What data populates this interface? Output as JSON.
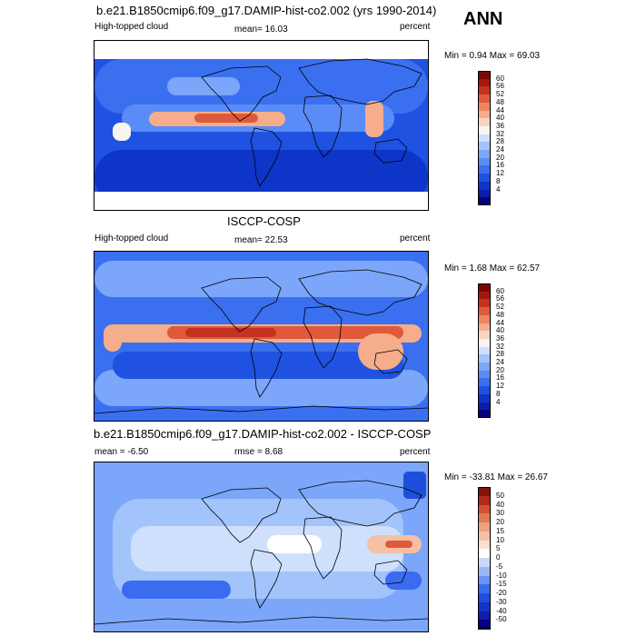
{
  "season": "ANN",
  "panels": [
    {
      "id": "model",
      "title": "b.e21.B1850cmip6.f09_g17.DAMIP-hist-co2.002 (yrs 1990-2014)",
      "left_label": "High-topped cloud",
      "center_label": "mean=  16.03",
      "right_label": "percent",
      "minmax": "Min =   0.94 Max =  69.03",
      "colorbar_colors": [
        "#05007f",
        "#0a1fa8",
        "#0d35c8",
        "#1f52e0",
        "#3a6ff0",
        "#5a8cf7",
        "#7ba6f9",
        "#a3c3fb",
        "#cfe0fd",
        "#f8f4ef",
        "#f8d3bf",
        "#f5ad8c",
        "#ec8661",
        "#de5a3b",
        "#c43220",
        "#a21810",
        "#7e0604"
      ],
      "colorbar_labels": [
        "60",
        "56",
        "52",
        "48",
        "44",
        "40",
        "36",
        "32",
        "28",
        "24",
        "20",
        "16",
        "12",
        "8",
        "4"
      ]
    },
    {
      "id": "obs",
      "title": "ISCCP-COSP",
      "left_label": "High-topped cloud",
      "center_label": "mean=  22.53",
      "right_label": "percent",
      "minmax": "Min =   1.68 Max =  62.57",
      "colorbar_colors": [
        "#05007f",
        "#0a1fa8",
        "#0d35c8",
        "#1f52e0",
        "#3a6ff0",
        "#5a8cf7",
        "#7ba6f9",
        "#a3c3fb",
        "#cfe0fd",
        "#f8f4ef",
        "#f8d3bf",
        "#f5ad8c",
        "#ec8661",
        "#de5a3b",
        "#c43220",
        "#a21810",
        "#7e0604"
      ],
      "colorbar_labels": [
        "60",
        "56",
        "52",
        "48",
        "44",
        "40",
        "36",
        "32",
        "28",
        "24",
        "20",
        "16",
        "12",
        "8",
        "4"
      ]
    },
    {
      "id": "diff",
      "title": "b.e21.B1850cmip6.f09_g17.DAMIP-hist-co2.002 - ISCCP-COSP",
      "left_label": "mean =  -6.50",
      "center_label": "rmse =   8.68",
      "right_label": "percent",
      "minmax": "Min = -33.81 Max =  26.67",
      "colorbar_colors": [
        "#05007f",
        "#0d1fa6",
        "#1235c6",
        "#1d4fdc",
        "#3a6cf0",
        "#6b93f4",
        "#9ab8f6",
        "#c7d8f7",
        "#ffffff",
        "#fbe0d0",
        "#f6c0a5",
        "#efa07c",
        "#e27b55",
        "#d05233",
        "#b22a18",
        "#87100a"
      ],
      "colorbar_labels": [
        "50",
        "40",
        "30",
        "20",
        "15",
        "10",
        "5",
        "0",
        "-5",
        "-10",
        "-15",
        "-20",
        "-30",
        "-40",
        "-50"
      ]
    }
  ]
}
